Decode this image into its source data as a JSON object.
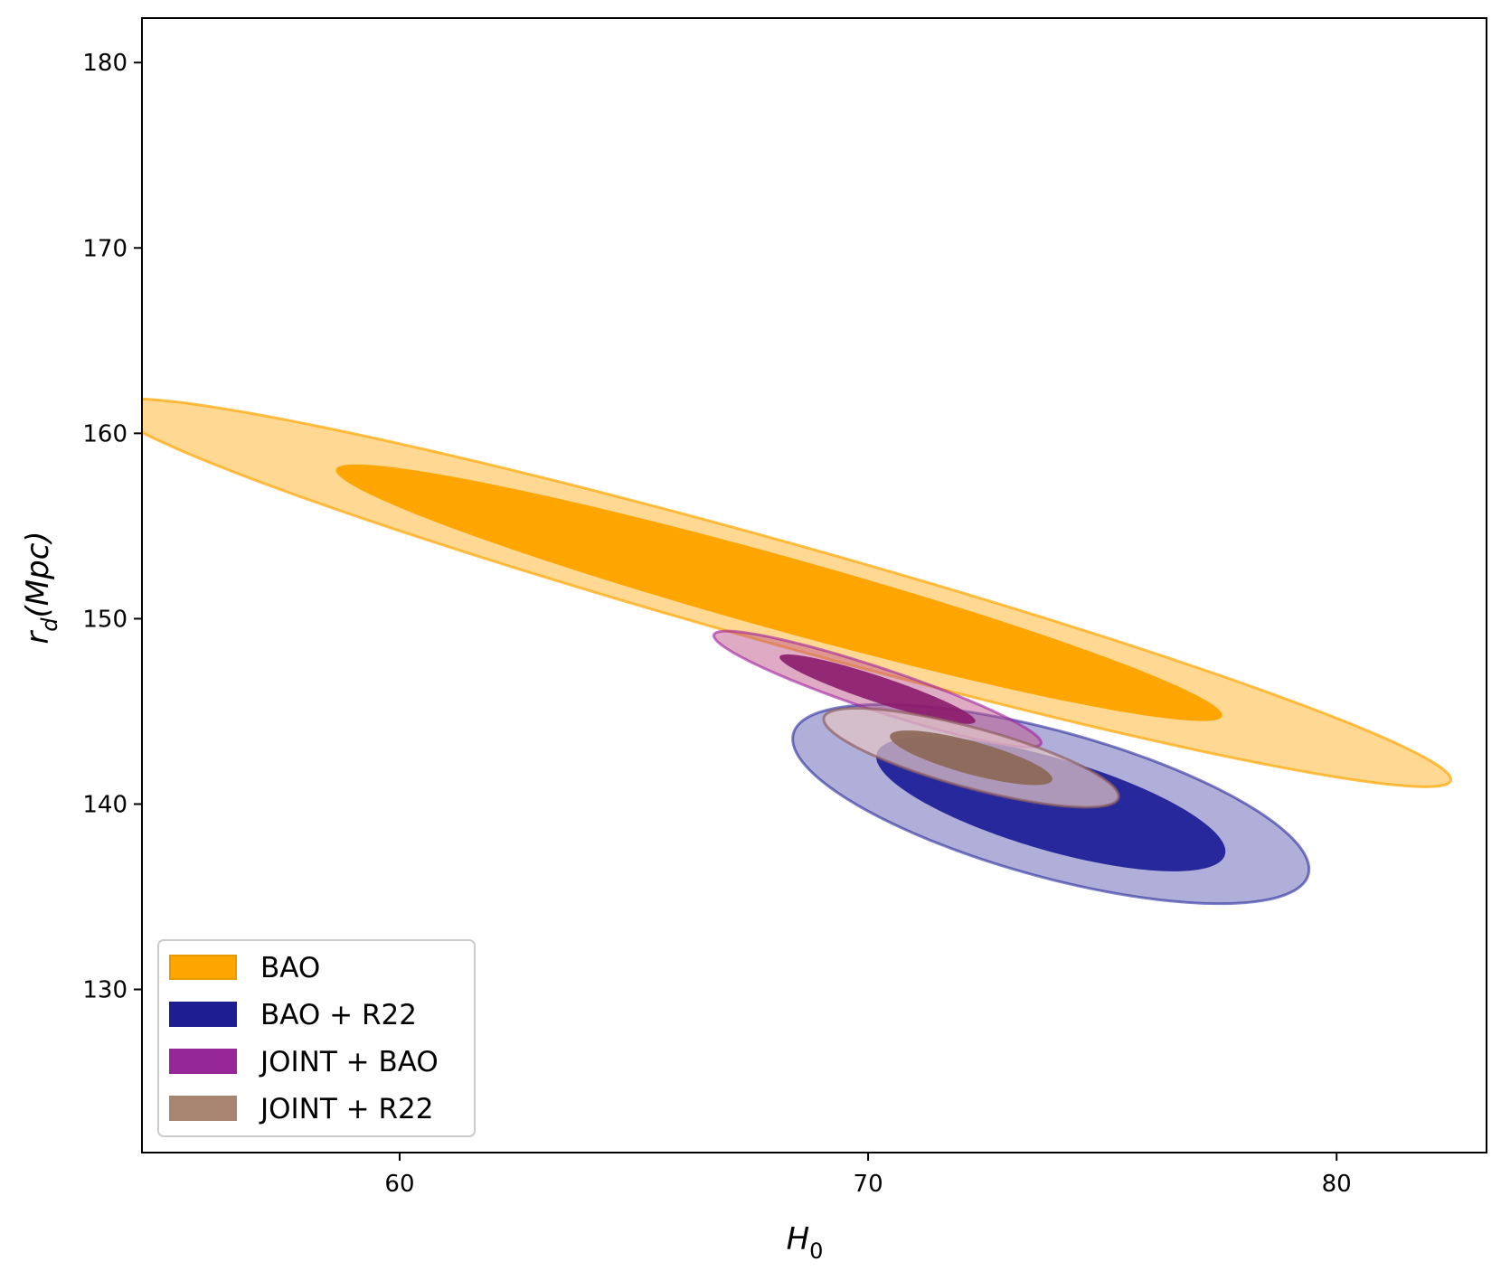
{
  "chart_data": {
    "type": "contour",
    "xlabel": "H",
    "xlabel_sub": "0",
    "ylabel": "r",
    "ylabel_sub": "d",
    "ylabel_suffix": "(Mpc)",
    "xlim": [
      54.5,
      83.2
    ],
    "ylim": [
      121.2,
      182.4
    ],
    "xticks": [
      60,
      70,
      80
    ],
    "yticks": [
      130,
      140,
      150,
      160,
      170,
      180
    ],
    "grid": false,
    "legend_position": "lower-left",
    "series": [
      {
        "name": "BAO",
        "color": "#ffa500",
        "center": [
          68.1,
          151.4
        ],
        "angle_deg": -35.8,
        "outer": {
          "a": 17.6,
          "b": 2.32,
          "fill": "#ffa500",
          "fill_opacity": 0.42,
          "stroke": "#ffa500",
          "stroke_opacity": 0.7
        },
        "inner": {
          "a": 11.6,
          "b": 1.68,
          "fill": "#ffa500",
          "fill_opacity": 1.0
        }
      },
      {
        "name": "BAO + R22",
        "color": "#191996",
        "center": [
          73.9,
          140.0
        ],
        "angle_deg": -43.9,
        "outer": {
          "a": 7.0,
          "b": 3.2,
          "fill": "#191996",
          "fill_opacity": 0.35,
          "stroke": "#191996",
          "stroke_opacity": 0.55
        },
        "inner": {
          "a": 4.8,
          "b": 2.0,
          "fill": "#191996",
          "fill_opacity": 0.9
        }
      },
      {
        "name": "JOINT + BAO",
        "color": "#8b1a8b",
        "center": [
          70.2,
          146.2
        ],
        "angle_deg": -41.6,
        "outer": {
          "a": 4.6,
          "b": 0.92,
          "fill": "#c0558a",
          "fill_opacity": 0.5,
          "stroke": "#a020a0",
          "stroke_opacity": 0.6
        },
        "inner": {
          "a": 2.75,
          "b": 0.56,
          "fill": "#8b1a6c",
          "fill_opacity": 0.9
        }
      },
      {
        "name": "JOINT + R22",
        "color": "#a47d67",
        "center": [
          72.2,
          142.5
        ],
        "angle_deg": -39.0,
        "outer": {
          "a": 3.9,
          "b": 1.35,
          "fill": "#e2c4c4",
          "fill_opacity": 0.72,
          "stroke": "#8f5f5f",
          "stroke_opacity": 0.7
        },
        "inner": {
          "a": 2.15,
          "b": 0.74,
          "fill": "#8c6654",
          "fill_opacity": 0.9
        }
      }
    ],
    "legend": [
      {
        "label": "BAO",
        "fill": "#ffa500",
        "stroke": "#e79a00"
      },
      {
        "label": "BAO + R22",
        "fill": "#1e1e91",
        "stroke": "#1e1e91"
      },
      {
        "label": "JOINT + BAO",
        "fill": "#962796",
        "stroke": "#962796"
      },
      {
        "label": "JOINT + R22",
        "fill": "#a78570",
        "stroke": "#a78570"
      }
    ]
  }
}
